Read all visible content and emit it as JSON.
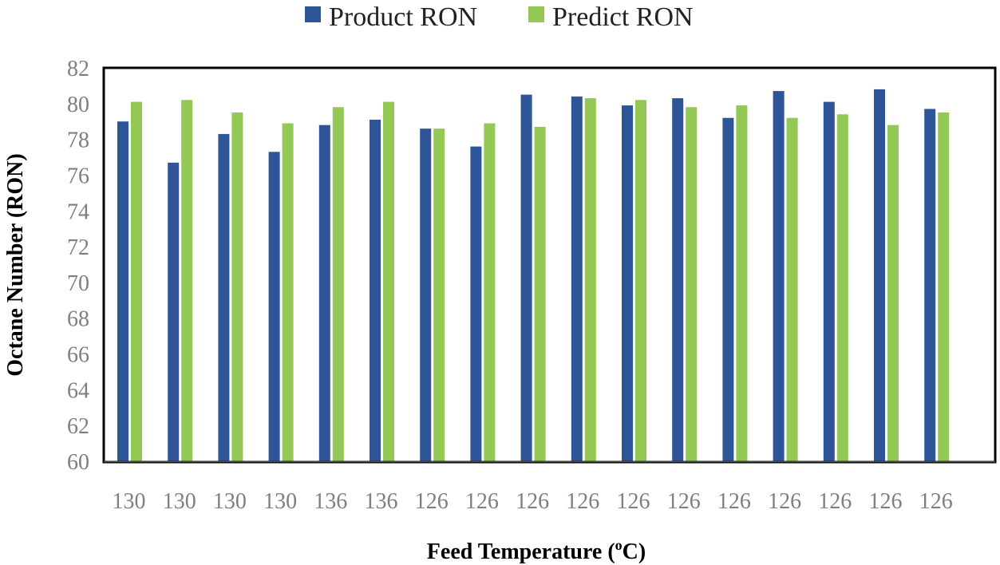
{
  "chart_data": {
    "type": "bar",
    "title": "",
    "xlabel": "Feed Temperature (",
    "xlabel_superscript": "o",
    "xlabel_suffix": "C)",
    "ylabel": "Octane Number (RON)",
    "ylim": [
      60,
      82
    ],
    "yticks": [
      60,
      62,
      64,
      66,
      68,
      70,
      72,
      74,
      76,
      78,
      80,
      82
    ],
    "categories": [
      "130",
      "130",
      "130",
      "130",
      "136",
      "136",
      "126",
      "126",
      "126",
      "126",
      "126",
      "126",
      "126",
      "126",
      "126",
      "126",
      "126"
    ],
    "legend_position": "top",
    "grid": false,
    "series": [
      {
        "name": "Product RON",
        "color": "#2e5597",
        "values": [
          79.0,
          76.7,
          78.3,
          77.3,
          78.8,
          79.1,
          78.6,
          77.6,
          80.5,
          80.4,
          79.9,
          80.3,
          79.2,
          80.7,
          80.1,
          80.8,
          79.7
        ]
      },
      {
        "name": "Predict RON",
        "color": "#92c853",
        "values": [
          80.1,
          80.2,
          79.5,
          78.9,
          79.8,
          80.1,
          78.6,
          78.9,
          78.7,
          80.3,
          80.2,
          79.8,
          79.9,
          79.2,
          79.4,
          78.8,
          79.5
        ]
      }
    ]
  }
}
